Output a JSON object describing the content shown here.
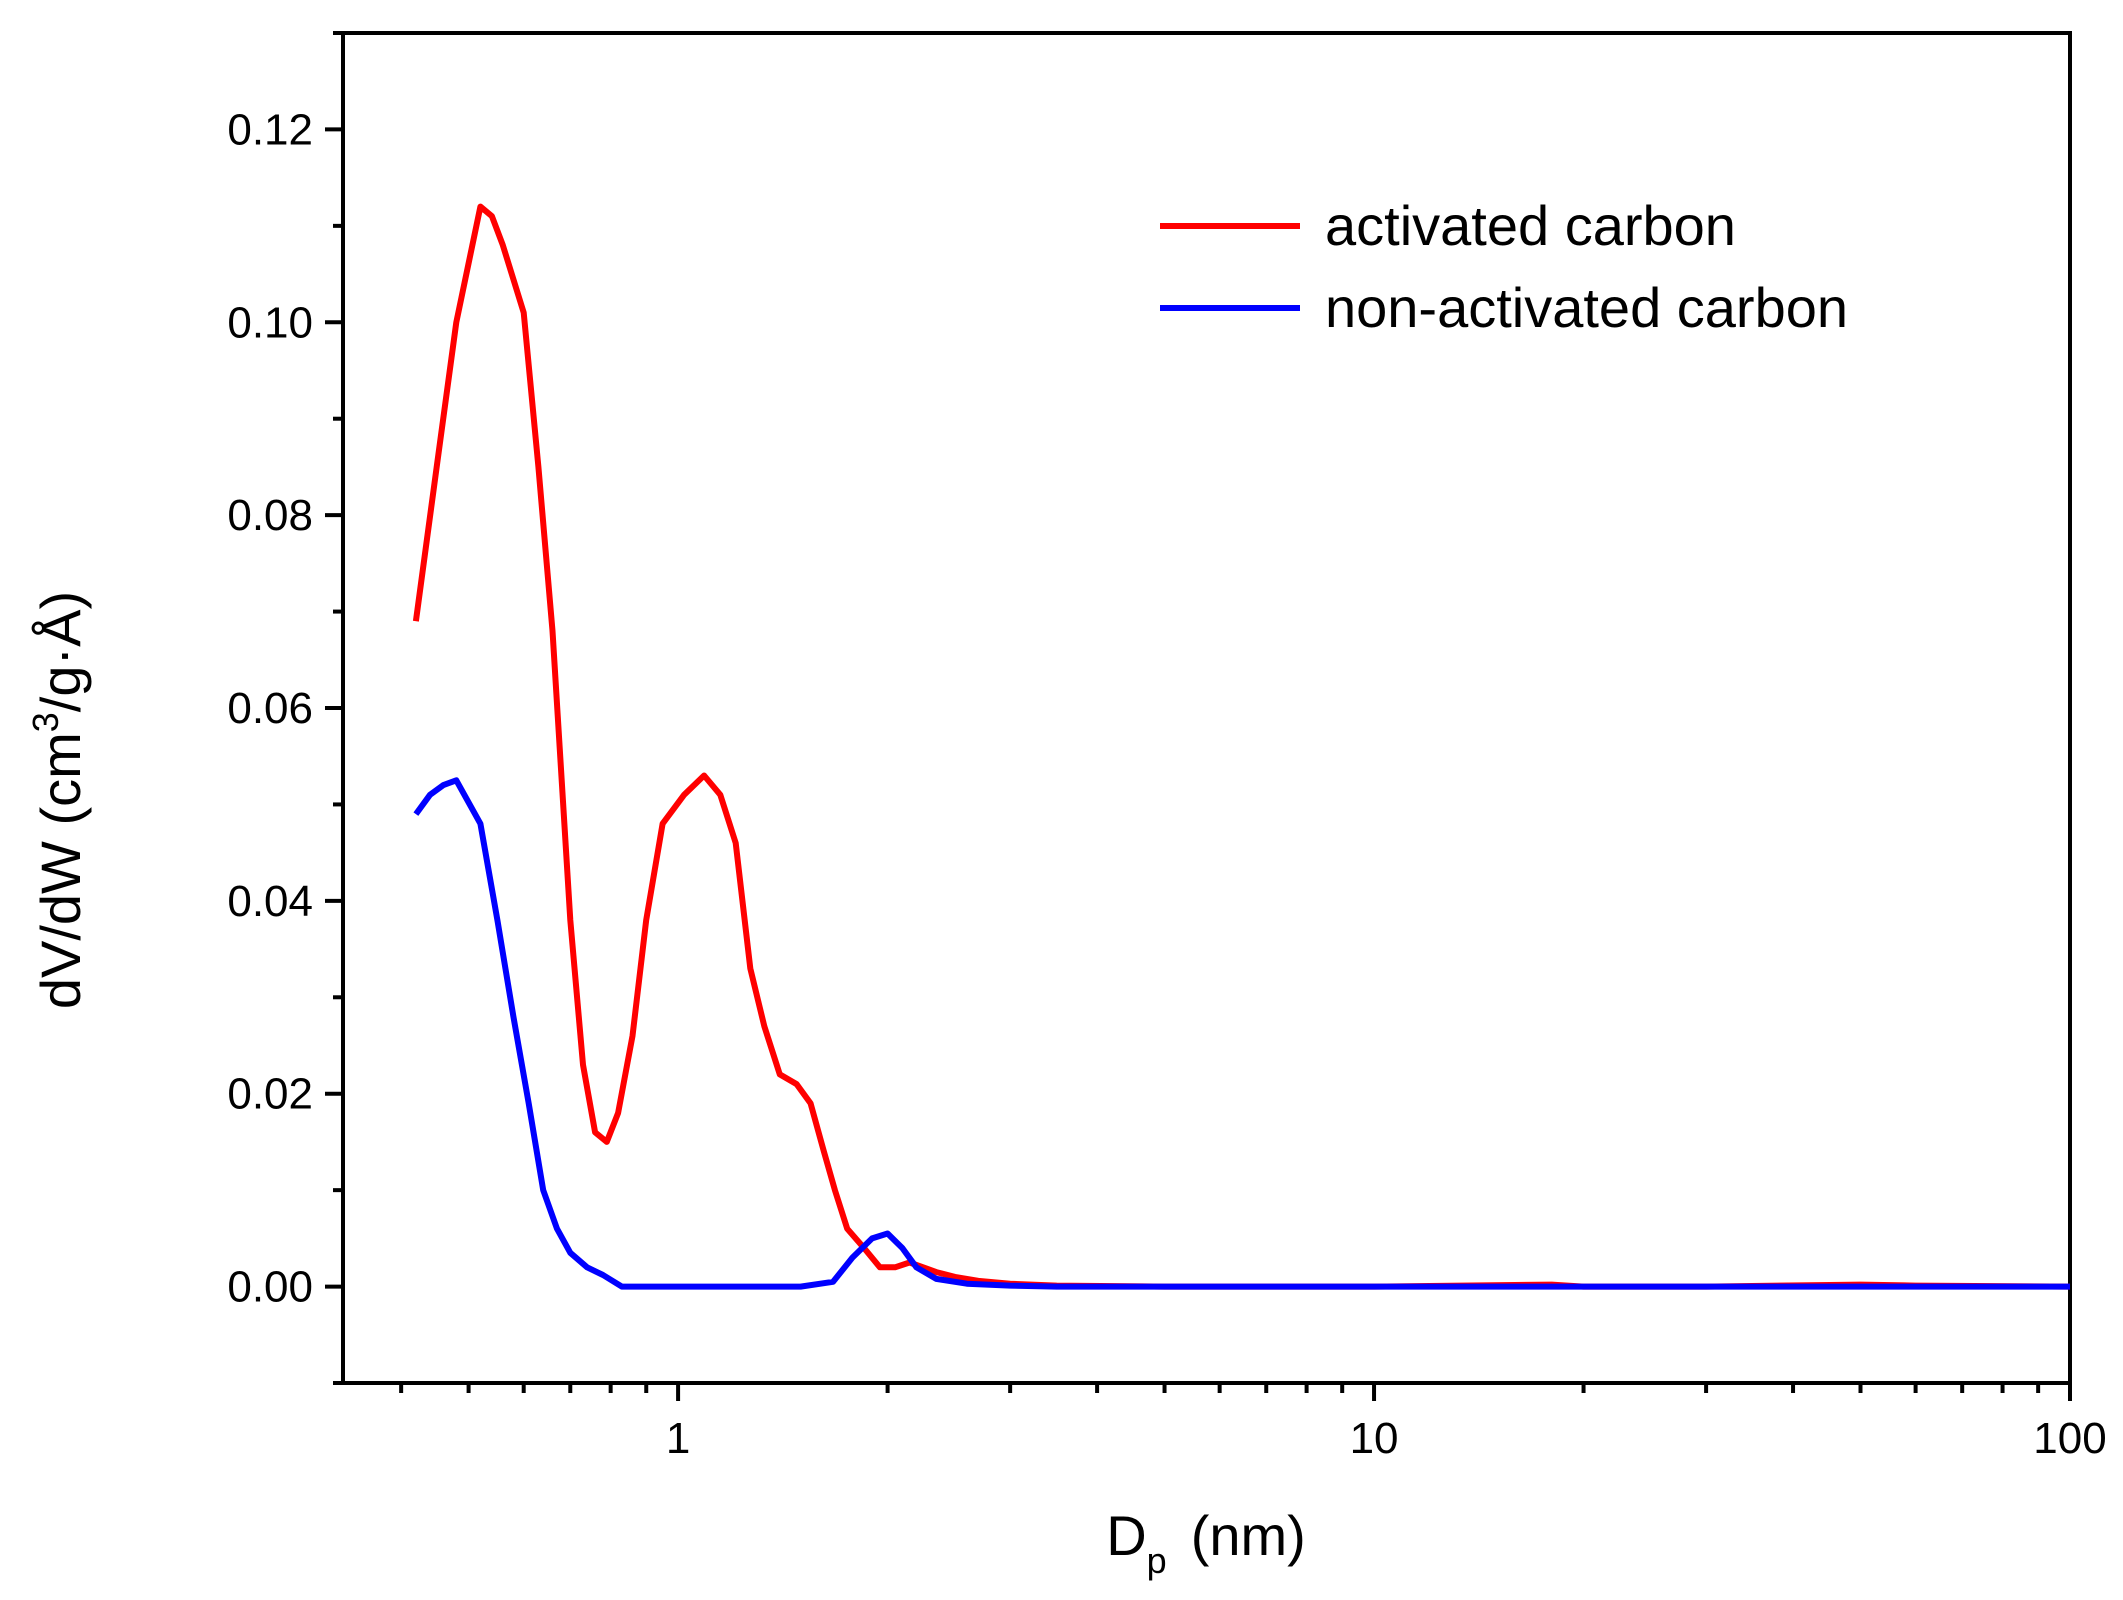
{
  "chart_data": {
    "type": "line",
    "x_scale": "log",
    "xlabel": {
      "main": "D",
      "subscript": "p",
      "suffix": "(nm)"
    },
    "ylabel": {
      "prefix": "dV/dW (cm",
      "superscript": "3",
      "suffix": "/g·Å)"
    },
    "xlim": [
      0.33,
      100
    ],
    "ylim": [
      -0.01,
      0.13
    ],
    "x_tick_labels": [
      "1",
      "10",
      "100"
    ],
    "y_tick_labels": [
      "0.00",
      "0.02",
      "0.04",
      "0.06",
      "0.08",
      "0.10",
      "0.12"
    ],
    "legend_position": "top-right",
    "series": [
      {
        "name": "activated carbon",
        "color": "#ff0000",
        "x": [
          0.42,
          0.45,
          0.48,
          0.52,
          0.54,
          0.56,
          0.6,
          0.63,
          0.66,
          0.7,
          0.73,
          0.76,
          0.79,
          0.82,
          0.86,
          0.9,
          0.95,
          1.02,
          1.09,
          1.15,
          1.21,
          1.27,
          1.33,
          1.4,
          1.48,
          1.55,
          1.62,
          1.68,
          1.75,
          1.85,
          1.95,
          2.05,
          2.15,
          2.25,
          2.35,
          2.5,
          2.7,
          3.0,
          3.5,
          5.0,
          10.0,
          18.0,
          20.0,
          30.0,
          50.0,
          60.0,
          100.0
        ],
        "y": [
          0.069,
          0.085,
          0.1,
          0.112,
          0.111,
          0.108,
          0.101,
          0.085,
          0.068,
          0.038,
          0.023,
          0.016,
          0.015,
          0.018,
          0.026,
          0.038,
          0.048,
          0.051,
          0.053,
          0.051,
          0.046,
          0.033,
          0.027,
          0.022,
          0.021,
          0.019,
          0.014,
          0.01,
          0.006,
          0.004,
          0.002,
          0.002,
          0.0025,
          0.002,
          0.0015,
          0.001,
          0.0006,
          0.0003,
          0.0001,
          0.0,
          0.0,
          0.0002,
          0.0,
          0.0,
          0.0002,
          0.0001,
          0.0
        ],
        "name_id": "activated"
      },
      {
        "name": "non-activated carbon",
        "color": "#0000ff",
        "x": [
          0.42,
          0.44,
          0.46,
          0.48,
          0.52,
          0.55,
          0.58,
          0.61,
          0.64,
          0.67,
          0.7,
          0.74,
          0.78,
          0.83,
          1.0,
          1.2,
          1.5,
          1.67,
          1.78,
          1.9,
          2.0,
          2.1,
          2.2,
          2.35,
          2.6,
          3.0,
          3.5,
          5.0,
          100.0
        ],
        "y": [
          0.049,
          0.051,
          0.052,
          0.0525,
          0.048,
          0.038,
          0.028,
          0.019,
          0.01,
          0.006,
          0.0035,
          0.002,
          0.0012,
          0.0,
          0.0,
          0.0,
          0.0,
          0.0005,
          0.003,
          0.005,
          0.0055,
          0.004,
          0.002,
          0.0008,
          0.0003,
          0.0001,
          0.0,
          0.0,
          0.0
        ],
        "name_id": "non-activated"
      }
    ]
  }
}
